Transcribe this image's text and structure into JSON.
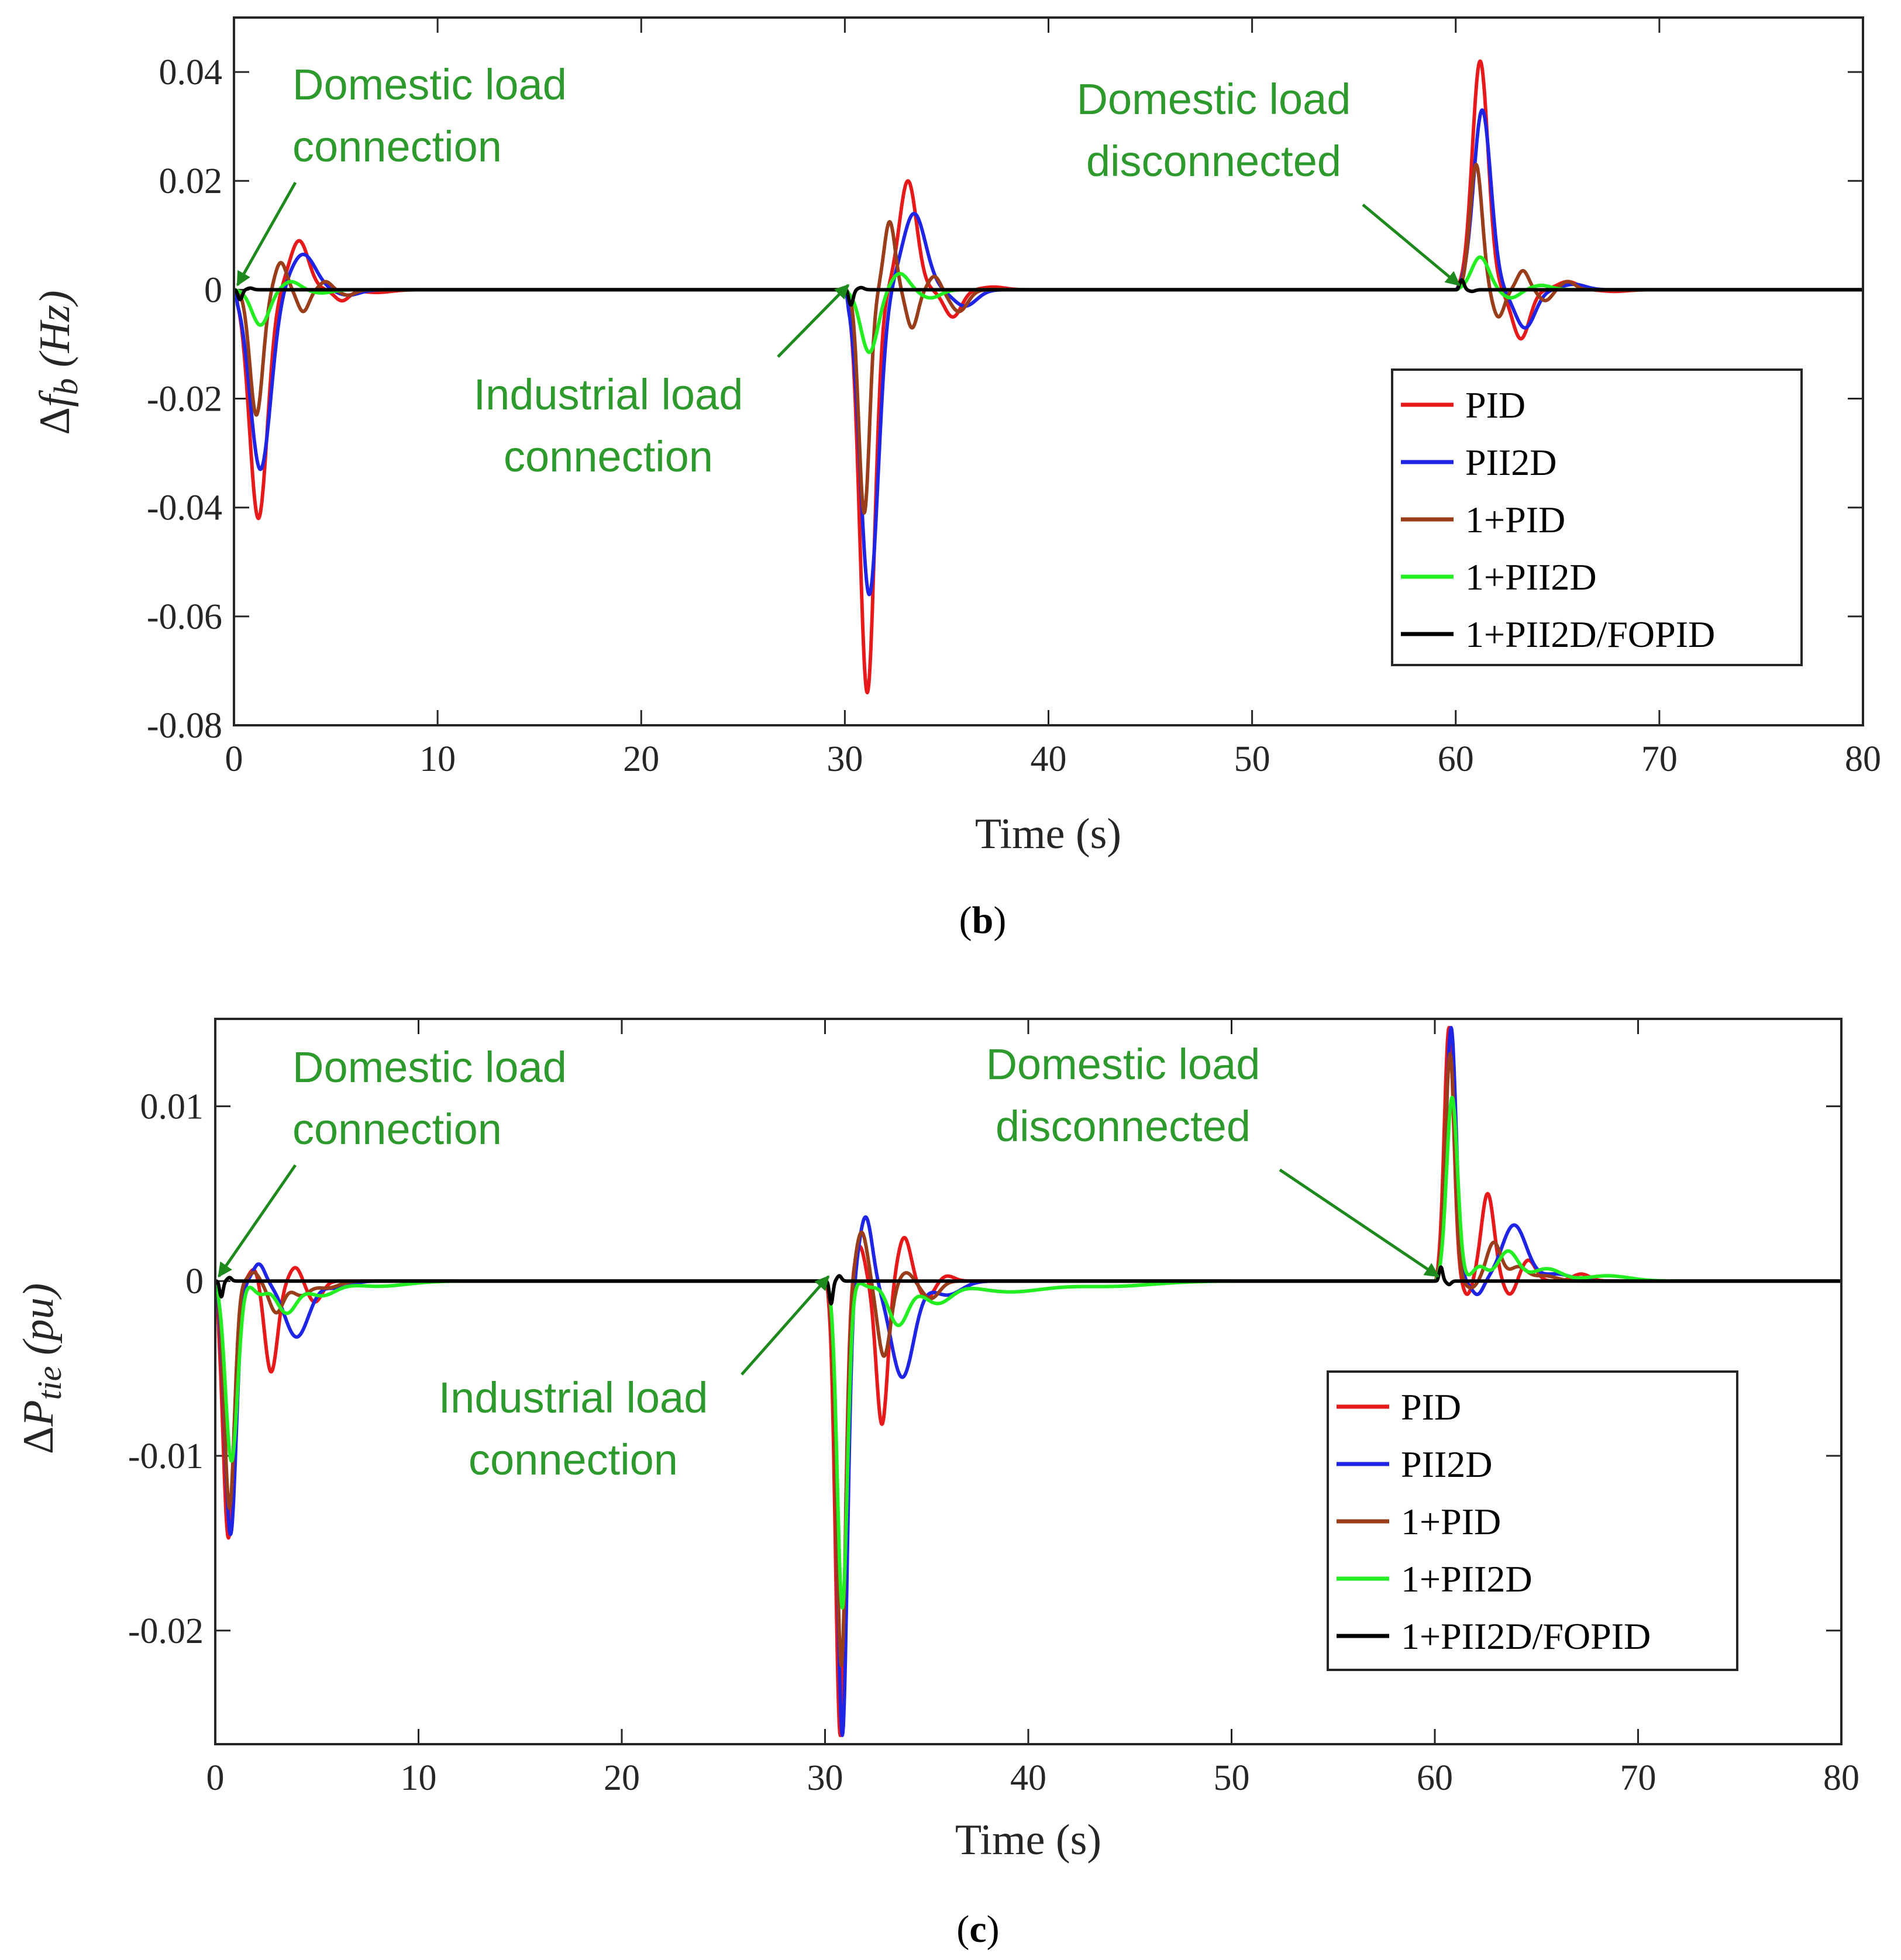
{
  "figure": {
    "caption_b": {
      "open": "(",
      "letter": "b",
      "close": ")"
    },
    "caption_c": {
      "open": "(",
      "letter": "c",
      "close": ")"
    }
  },
  "chart_data": [
    {
      "type": "line",
      "panel": "b",
      "xlabel": "Time (s)",
      "ylabel": {
        "delta": "Δ",
        "symbol": "f",
        "subscript": "b",
        "unit": " (Hz)"
      },
      "xlim": [
        0,
        80
      ],
      "ylim": [
        -0.08,
        0.05
      ],
      "xticks": [
        0,
        10,
        20,
        30,
        40,
        50,
        60,
        70,
        80
      ],
      "xtick_labels": [
        "0",
        "10",
        "20",
        "30",
        "40",
        "50",
        "60",
        "70",
        "80"
      ],
      "yticks": [
        0.04,
        0.02,
        0,
        -0.02,
        -0.04,
        -0.06,
        -0.08
      ],
      "ytick_labels": [
        "0.04",
        "0.02",
        "0",
        "-0.02",
        "-0.04",
        "-0.06",
        "-0.08"
      ],
      "legend_position": "lower-right",
      "annotations": [
        {
          "lines": [
            "Domestic load",
            "connection"
          ],
          "target": [
            0,
            0
          ]
        },
        {
          "lines": [
            "Industrial load",
            "connection"
          ],
          "target": [
            30,
            0
          ]
        },
        {
          "lines": [
            "Domestic load",
            "disconnected"
          ],
          "target": [
            60,
            0
          ]
        }
      ],
      "series": [
        {
          "name": "PID",
          "color": "#e8191b",
          "events": [
            {
              "t0": 0,
              "a": -0.042,
              "tp": 1.2,
              "w": 0.62,
              "osc": [
                [
                  3.2,
                  0.009,
                  0.65
                ],
                [
                  5.3,
                  -0.002,
                  0.5
                ],
                [
                  7.0,
                  -0.0005,
                  1.0
                ]
              ]
            },
            {
              "t0": 30,
              "a": -0.074,
              "tp": 31.1,
              "w": 0.52,
              "osc": [
                [
                  33.1,
                  0.02,
                  0.6
                ],
                [
                  35.3,
                  -0.005,
                  0.6
                ],
                [
                  37.3,
                  0.0005,
                  0.8
                ]
              ]
            },
            {
              "t0": 60,
              "a": 0.042,
              "tp": 61.2,
              "w": 0.55,
              "osc": [
                [
                  63.2,
                  -0.009,
                  0.6
                ],
                [
                  65.5,
                  0.0015,
                  0.7
                ],
                [
                  67.8,
                  -0.0003,
                  0.9
                ]
              ]
            }
          ]
        },
        {
          "name": "PII2D",
          "color": "#1f25e6",
          "events": [
            {
              "t0": 0,
              "a": -0.033,
              "tp": 1.3,
              "w": 0.72,
              "osc": [
                [
                  3.4,
                  0.0065,
                  0.85
                ],
                [
                  5.6,
                  -0.001,
                  0.8
                ]
              ]
            },
            {
              "t0": 30,
              "a": -0.056,
              "tp": 31.2,
              "w": 0.62,
              "osc": [
                [
                  33.4,
                  0.014,
                  0.8
                ],
                [
                  35.9,
                  -0.003,
                  0.8
                ]
              ]
            },
            {
              "t0": 60,
              "a": 0.033,
              "tp": 61.3,
              "w": 0.6,
              "osc": [
                [
                  63.4,
                  -0.007,
                  0.7
                ],
                [
                  65.8,
                  0.001,
                  0.8
                ]
              ]
            }
          ]
        },
        {
          "name": "1+PID",
          "color": "#9a3d1a",
          "events": [
            {
              "t0": 0,
              "a": -0.023,
              "tp": 1.1,
              "w": 0.45,
              "osc": [
                [
                  2.3,
                  0.005,
                  0.4
                ],
                [
                  3.4,
                  -0.004,
                  0.4
                ],
                [
                  4.5,
                  0.0015,
                  0.4
                ],
                [
                  5.6,
                  -0.001,
                  0.5
                ]
              ]
            },
            {
              "t0": 30,
              "a": -0.041,
              "tp": 30.95,
              "w": 0.38,
              "osc": [
                [
                  32.2,
                  0.0125,
                  0.38
                ],
                [
                  33.3,
                  -0.007,
                  0.4
                ],
                [
                  34.4,
                  0.0025,
                  0.4
                ],
                [
                  35.6,
                  -0.004,
                  0.6
                ]
              ]
            },
            {
              "t0": 60,
              "a": 0.023,
              "tp": 61.0,
              "w": 0.42,
              "osc": [
                [
                  62.1,
                  -0.005,
                  0.4
                ],
                [
                  63.3,
                  0.0035,
                  0.4
                ],
                [
                  64.4,
                  -0.002,
                  0.45
                ],
                [
                  65.5,
                  0.0015,
                  0.5
                ]
              ]
            }
          ]
        },
        {
          "name": "1+PII2D",
          "color": "#22ee22",
          "events": [
            {
              "t0": 0,
              "a": -0.0065,
              "tp": 1.3,
              "w": 0.6,
              "osc": [
                [
                  2.8,
                  0.0015,
                  0.6
                ],
                [
                  4.3,
                  -0.0006,
                  0.7
                ]
              ]
            },
            {
              "t0": 30,
              "a": -0.0115,
              "tp": 31.2,
              "w": 0.6,
              "osc": [
                [
                  32.7,
                  0.003,
                  0.6
                ],
                [
                  34.2,
                  -0.0015,
                  0.7
                ]
              ]
            },
            {
              "t0": 60,
              "a": 0.006,
              "tp": 61.2,
              "w": 0.6,
              "osc": [
                [
                  62.7,
                  -0.0015,
                  0.6
                ],
                [
                  64.2,
                  0.0008,
                  0.7
                ]
              ]
            }
          ]
        },
        {
          "name": "1+PII2D/FOPID",
          "color": "#000000",
          "events": [
            {
              "t0": 0,
              "a": -0.0018,
              "tp": 0.3,
              "w": 0.15,
              "osc": [
                [
                  0.8,
                  0.0003,
                  0.2
                ]
              ]
            },
            {
              "t0": 30,
              "a": -0.0028,
              "tp": 30.3,
              "w": 0.15,
              "osc": [
                [
                  30.8,
                  0.0004,
                  0.2
                ]
              ]
            },
            {
              "t0": 60,
              "a": 0.0018,
              "tp": 60.3,
              "w": 0.15,
              "osc": [
                [
                  60.8,
                  -0.0003,
                  0.2
                ]
              ]
            }
          ]
        }
      ]
    },
    {
      "type": "line",
      "panel": "c",
      "xlabel": "Time (s)",
      "ylabel": {
        "delta": "Δ",
        "symbol": "P",
        "subscript": "tie",
        "unit": " (pu)"
      },
      "xlim": [
        0,
        80
      ],
      "ylim": [
        -0.0265,
        0.015
      ],
      "xticks": [
        0,
        10,
        20,
        30,
        40,
        50,
        60,
        70,
        80
      ],
      "xtick_labels": [
        "0",
        "10",
        "20",
        "30",
        "40",
        "50",
        "60",
        "70",
        "80"
      ],
      "yticks": [
        0.01,
        0,
        -0.01,
        -0.02
      ],
      "ytick_labels": [
        "0.01",
        "0",
        "-0.01",
        "-0.02"
      ],
      "legend_position": "lower-right",
      "annotations": [
        {
          "lines": [
            "Domestic load",
            "connection"
          ],
          "target": [
            0,
            0
          ]
        },
        {
          "lines": [
            "Industrial load",
            "connection"
          ],
          "target": [
            30,
            0
          ]
        },
        {
          "lines": [
            "Domestic load",
            "disconnected"
          ],
          "target": [
            60,
            0
          ]
        }
      ],
      "series": [
        {
          "name": "PID",
          "color": "#e8191b",
          "events": [
            {
              "t0": 0,
              "a": -0.0147,
              "tp": 0.65,
              "w": 0.38,
              "osc": [
                [
                  1.95,
                  0.0008,
                  0.35
                ],
                [
                  2.75,
                  -0.0052,
                  0.45
                ],
                [
                  3.95,
                  0.0008,
                  0.4
                ],
                [
                  4.9,
                  -0.0012,
                  0.5
                ]
              ]
            },
            {
              "t0": 30,
              "a": -0.026,
              "tp": 30.75,
              "w": 0.33,
              "osc": [
                [
                  31.7,
                  0.002,
                  0.35
                ],
                [
                  32.8,
                  -0.0082,
                  0.4
                ],
                [
                  33.9,
                  0.0025,
                  0.45
                ],
                [
                  35.0,
                  -0.001,
                  0.5
                ],
                [
                  36.0,
                  0.0003,
                  0.5
                ]
              ]
            },
            {
              "t0": 60,
              "a": 0.0145,
              "tp": 60.7,
              "w": 0.33,
              "osc": [
                [
                  61.6,
                  -0.0008,
                  0.3
                ],
                [
                  62.6,
                  0.005,
                  0.45
                ],
                [
                  63.7,
                  -0.0008,
                  0.4
                ],
                [
                  64.6,
                  0.0012,
                  0.5
                ],
                [
                  67.2,
                  0.0004,
                  0.6
                ]
              ]
            }
          ]
        },
        {
          "name": "PII2D",
          "color": "#1f25e6",
          "events": [
            {
              "t0": 0,
              "a": -0.0145,
              "tp": 0.75,
              "w": 0.4,
              "osc": [
                [
                  2.15,
                  0.001,
                  0.4
                ],
                [
                  4.0,
                  -0.0032,
                  0.85
                ],
                [
                  6.0,
                  -0.0004,
                  0.9
                ]
              ]
            },
            {
              "t0": 30,
              "a": -0.026,
              "tp": 30.85,
              "w": 0.35,
              "osc": [
                [
                  32.0,
                  0.0037,
                  0.45
                ],
                [
                  33.8,
                  -0.0055,
                  0.8
                ],
                [
                  36.0,
                  -0.0008,
                  1.0
                ]
              ]
            },
            {
              "t0": 60,
              "a": 0.0145,
              "tp": 60.8,
              "w": 0.35,
              "osc": [
                [
                  62.1,
                  -0.0008,
                  0.4
                ],
                [
                  63.9,
                  0.0032,
                  0.85
                ],
                [
                  66.0,
                  0.0004,
                  1.0
                ]
              ]
            }
          ]
        },
        {
          "name": "1+PID",
          "color": "#9a3d1a",
          "events": [
            {
              "t0": 0,
              "a": -0.013,
              "tp": 0.7,
              "w": 0.35,
              "osc": [
                [
                  1.9,
                  0.0005,
                  0.35
                ],
                [
                  3.0,
                  -0.0018,
                  0.5
                ],
                [
                  4.2,
                  -0.0008,
                  0.6
                ],
                [
                  5.5,
                  -0.0004,
                  0.8
                ]
              ]
            },
            {
              "t0": 30,
              "a": -0.022,
              "tp": 30.8,
              "w": 0.33,
              "osc": [
                [
                  31.8,
                  0.0028,
                  0.4
                ],
                [
                  32.9,
                  -0.0043,
                  0.45
                ],
                [
                  34.0,
                  0.0005,
                  0.45
                ],
                [
                  35.2,
                  -0.001,
                  0.6
                ]
              ]
            },
            {
              "t0": 60,
              "a": 0.013,
              "tp": 60.75,
              "w": 0.33,
              "osc": [
                [
                  61.8,
                  -0.0004,
                  0.4
                ],
                [
                  62.9,
                  0.0022,
                  0.5
                ],
                [
                  64.1,
                  0.0008,
                  0.6
                ],
                [
                  65.4,
                  0.0003,
                  0.8
                ]
              ]
            }
          ]
        },
        {
          "name": "1+PII2D",
          "color": "#22ee22",
          "events": [
            {
              "t0": 0,
              "a": -0.0103,
              "tp": 0.8,
              "w": 0.42,
              "osc": [
                [
                  2.2,
                  -0.0007,
                  0.5
                ],
                [
                  3.5,
                  -0.0018,
                  0.7
                ],
                [
                  5.2,
                  -0.0008,
                  1.0
                ],
                [
                  8.0,
                  -0.0003,
                  2.0
                ]
              ]
            },
            {
              "t0": 30,
              "a": -0.0187,
              "tp": 30.85,
              "w": 0.35,
              "osc": [
                [
                  32.2,
                  -0.0003,
                  0.45
                ],
                [
                  33.6,
                  -0.0025,
                  0.7
                ],
                [
                  35.5,
                  -0.0012,
                  1.0
                ],
                [
                  39.0,
                  -0.0006,
                  2.5
                ],
                [
                  44.0,
                  -0.0003,
                  3.0
                ]
              ]
            },
            {
              "t0": 60,
              "a": 0.0105,
              "tp": 60.85,
              "w": 0.38,
              "osc": [
                [
                  62.2,
                  0.0008,
                  0.5
                ],
                [
                  63.6,
                  0.0017,
                  0.7
                ],
                [
                  65.5,
                  0.0007,
                  1.0
                ],
                [
                  68.5,
                  0.0003,
                  1.5
                ]
              ]
            }
          ]
        },
        {
          "name": "1+PII2D/FOPID",
          "color": "#000000",
          "events": [
            {
              "t0": 0,
              "a": -0.0009,
              "tp": 0.3,
              "w": 0.12,
              "osc": [
                [
                  0.7,
                  0.0002,
                  0.15
                ]
              ]
            },
            {
              "t0": 30,
              "a": -0.0013,
              "tp": 30.3,
              "w": 0.12,
              "osc": [
                [
                  30.7,
                  0.0003,
                  0.15
                ]
              ]
            },
            {
              "t0": 60,
              "a": 0.0008,
              "tp": 60.3,
              "w": 0.12,
              "osc": [
                [
                  60.7,
                  -0.0002,
                  0.15
                ]
              ]
            }
          ]
        }
      ]
    }
  ]
}
